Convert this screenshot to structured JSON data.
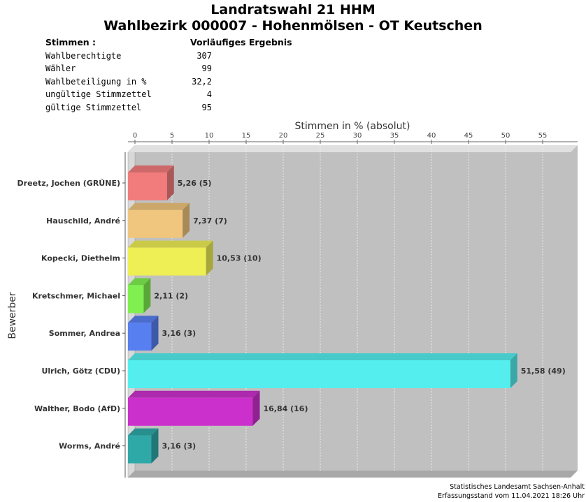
{
  "header": {
    "title": "Landratswahl 21 HHM",
    "subtitle": "Wahlbezirk 000007 - Hohenmölsen - OT Keutschen"
  },
  "summary": {
    "stimmen_label": "Stimmen  :",
    "result_label": "Vorläufiges Ergebnis",
    "rows": [
      {
        "label": "Wahlberechtigte",
        "value": "307"
      },
      {
        "label": "Wähler",
        "value": "99"
      },
      {
        "label": "Wahlbeteiligung in %",
        "value": "32,2"
      },
      {
        "label": "ungültige Stimmzettel",
        "value": "4"
      },
      {
        "label": "gültige Stimmzettel",
        "value": "95"
      }
    ]
  },
  "chart_data": {
    "type": "bar",
    "orientation": "horizontal",
    "xlabel": "Stimmen in % (absolut)",
    "ylabel": "Bewerber",
    "xlim": [
      0,
      60
    ],
    "xticks": [
      0,
      5,
      10,
      15,
      20,
      25,
      30,
      35,
      40,
      45,
      50,
      55
    ],
    "grid": true,
    "categories": [
      "Dreetz, Jochen (GRÜNE)",
      "Hauschild, André",
      "Kopecki, Diethelm",
      "Kretschmer, Michael",
      "Sommer, Andrea",
      "Ulrich, Götz (CDU)",
      "Walther, Bodo (AfD)",
      "Worms, André"
    ],
    "values": [
      5.26,
      7.37,
      10.53,
      2.11,
      3.16,
      51.58,
      16.84,
      3.16
    ],
    "data_labels": [
      "5,26 (5)",
      "7,37 (7)",
      "10,53 (10)",
      "2,11 (2)",
      "3,16 (3)",
      "51,58 (49)",
      "16,84 (16)",
      "3,16 (3)"
    ],
    "colors": [
      "#f27c7c",
      "#f0c57d",
      "#eeee55",
      "#7ff04f",
      "#587ff0",
      "#55eeee",
      "#cc30cc",
      "#2fa8a8"
    ]
  },
  "footer": {
    "line1": "Statistisches Landesamt Sachsen-Anhalt",
    "line2": "Erfassungsstand vom 11.04.2021 18:26 Uhr"
  }
}
